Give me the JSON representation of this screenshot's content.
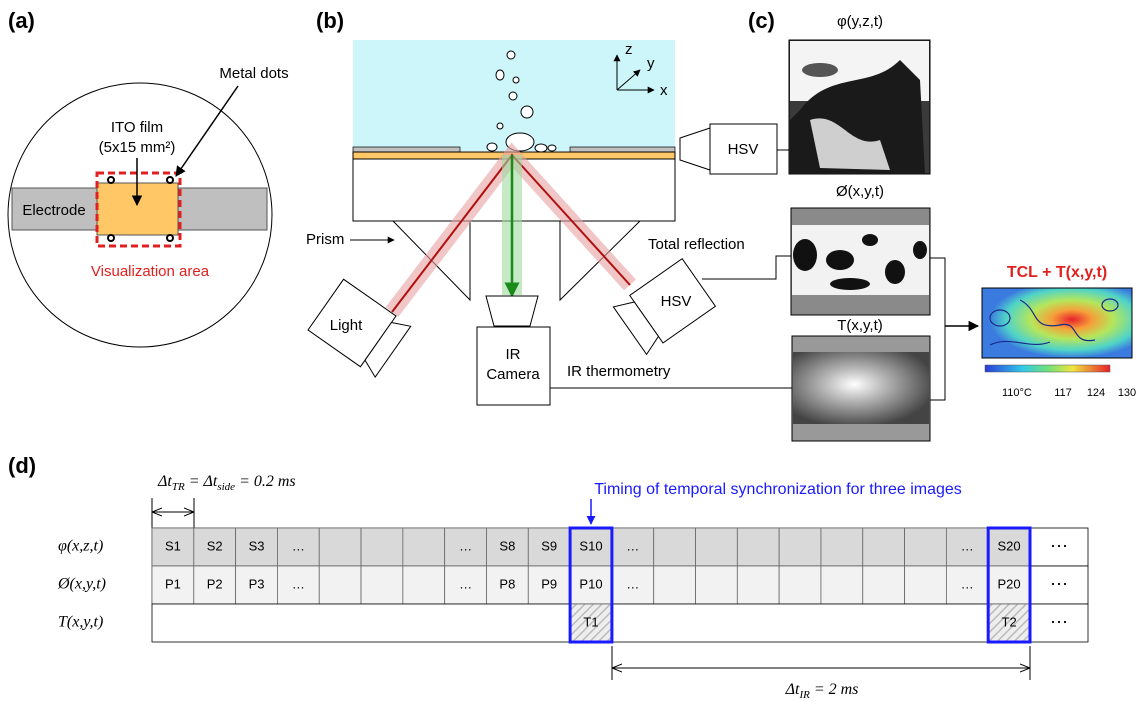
{
  "panels": {
    "a": "(a)",
    "b": "(b)",
    "c": "(c)",
    "d": "(d)"
  },
  "a": {
    "metal_dots": "Metal dots",
    "ito_film": "ITO film",
    "ito_size": "(5x15 mm²)",
    "electrode": "Electrode",
    "visualization_area": "Visualization area"
  },
  "b": {
    "axes": {
      "z": "z",
      "y": "y",
      "x": "x"
    },
    "hsv_side": "HSV",
    "prism": "Prism",
    "total_reflection": "Total reflection",
    "light": "Light",
    "hsv_bottom": "HSV",
    "ir_camera": [
      "IR",
      "Camera"
    ],
    "ir_thermometry": "IR thermometry"
  },
  "c": {
    "side_image": "φ(y,z,t)",
    "bottom_image": "Ø(x,y,t)",
    "thermal_image": "T(x,y,t)",
    "result_title": "TCL + T(x,y,t)",
    "colorbar_labels": [
      "110°C",
      "117",
      "124",
      "130"
    ]
  },
  "d": {
    "dt_tr": [
      "Δt",
      "TR",
      " = Δt",
      "side",
      " = 0.2 ms"
    ],
    "sync_note": "Timing of temporal synchronization for three images",
    "rows": [
      {
        "label": "φ(x,z,t)",
        "cells": [
          "S1",
          "S2",
          "S3",
          "…",
          null,
          null,
          null,
          "…",
          "S8",
          "S9",
          "S10",
          "…",
          null,
          null,
          null,
          null,
          null,
          null,
          null,
          "…",
          "S20"
        ],
        "more": "⋯"
      },
      {
        "label": "Ø(x,y,t)",
        "cells": [
          "P1",
          "P2",
          "P3",
          "…",
          null,
          null,
          null,
          "…",
          "P8",
          "P9",
          "P10",
          "…",
          null,
          null,
          null,
          null,
          null,
          null,
          null,
          "…",
          "P20"
        ],
        "more": "⋯"
      },
      {
        "label": "T(x,y,t)",
        "cells": [
          null,
          null,
          null,
          null,
          null,
          null,
          null,
          null,
          null,
          null,
          "T1",
          null,
          null,
          null,
          null,
          null,
          null,
          null,
          null,
          null,
          "T2"
        ],
        "more": "⋯"
      }
    ],
    "dt_ir": [
      "Δt",
      "IR",
      " = 2 ms"
    ]
  }
}
